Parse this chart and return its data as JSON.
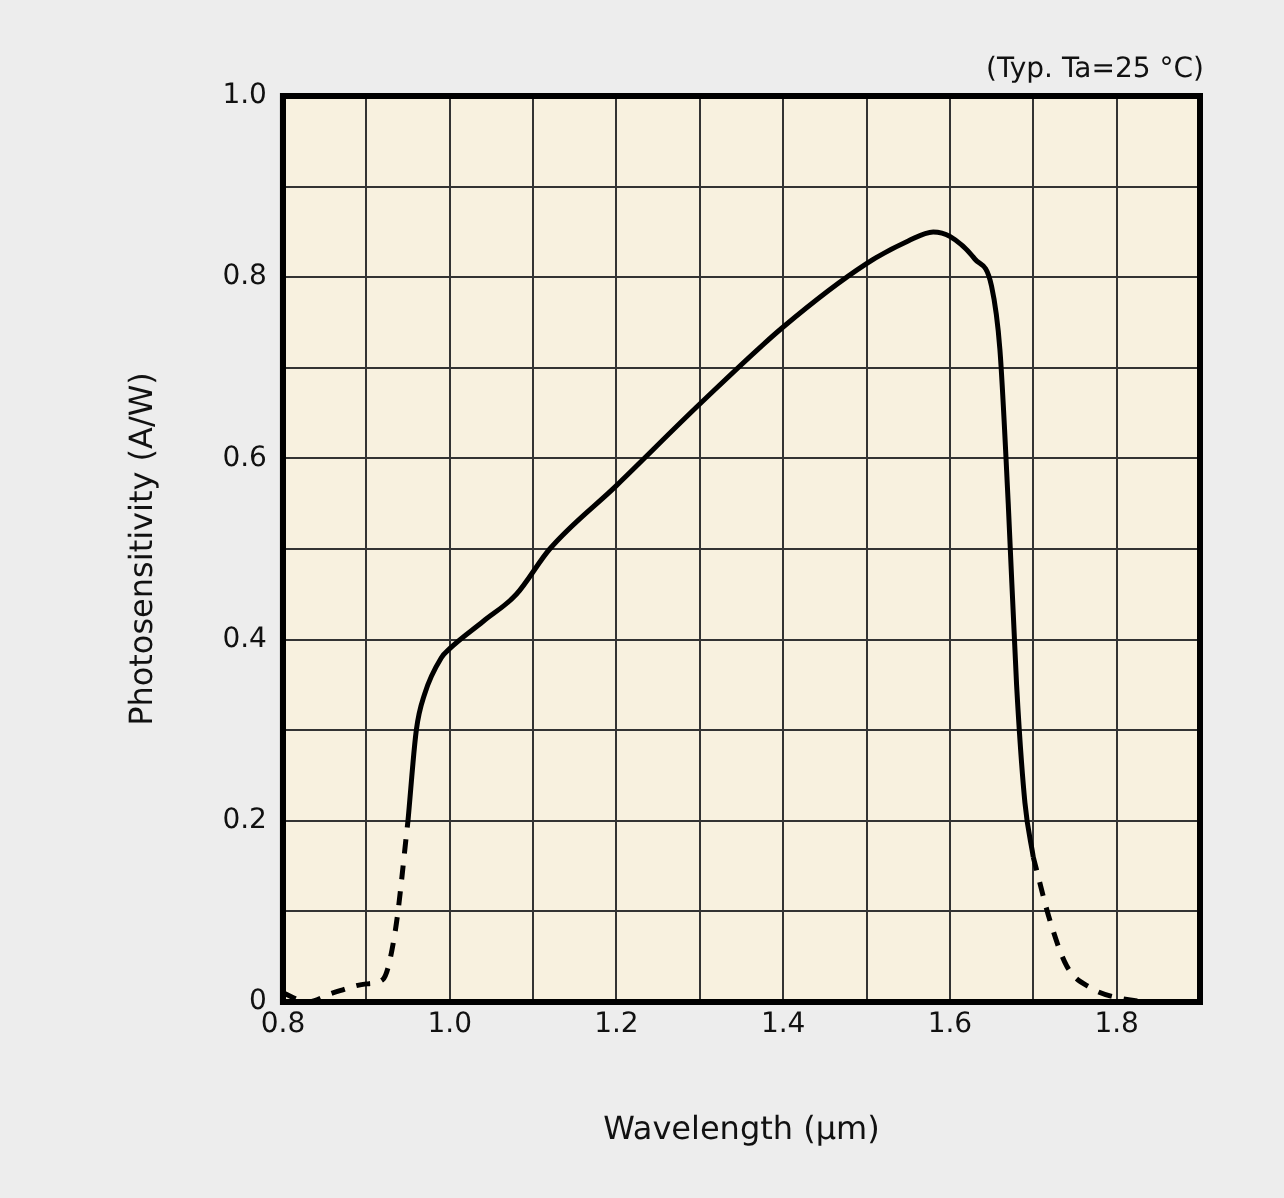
{
  "chart_data": {
    "type": "line",
    "xlabel": "Wavelength (µm)",
    "ylabel": "Photosensitivity (A/W)",
    "annotations": [
      "(Typ. Ta=25 °C)"
    ],
    "xlim": [
      0.8,
      1.9
    ],
    "xticks": [
      0.8,
      {
        "value": 0.9,
        "label": null
      },
      {
        "value": 1,
        "label": "1.0"
      },
      {
        "value": 1.1,
        "label": null
      },
      1.2,
      {
        "value": 1.3,
        "label": null
      },
      1.4,
      {
        "value": 1.5,
        "label": null
      },
      1.6,
      {
        "value": 1.7,
        "label": null
      },
      1.8,
      {
        "value": 1.9,
        "label": null
      }
    ],
    "ylim": [
      0,
      1.0
    ],
    "yticks": [
      0,
      {
        "value": 0.1,
        "label": null
      },
      0.2,
      {
        "value": 0.3,
        "label": null
      },
      0.4,
      {
        "value": 0.5,
        "label": null
      },
      0.6,
      {
        "value": 0.7,
        "label": null
      },
      0.8,
      {
        "value": 0.9,
        "label": null
      },
      {
        "value": 1,
        "label": "1.0"
      }
    ],
    "grid": true,
    "legend": false,
    "marker": "none",
    "series": [
      {
        "color": "#000000",
        "line_style": "dashed",
        "x": [
          0.8,
          0.83,
          0.86,
          0.9,
          0.92,
          0.935,
          0.95
        ],
        "values": [
          0.01,
          0,
          0.01,
          0.02,
          0.025,
          0.08,
          0.2
        ]
      },
      {
        "color": "#000000",
        "line_style": "solid",
        "x": [
          0.95,
          0.96,
          0.97,
          0.99,
          1.0,
          1.04,
          1.08,
          1.12,
          1.2,
          1.3,
          1.4,
          1.5,
          1.55,
          1.58,
          1.6,
          1.63,
          1.65,
          1.66,
          1.67,
          1.68,
          1.69,
          1.7
        ],
        "values": [
          0.2,
          0.3,
          0.34,
          0.38,
          0.39,
          0.42,
          0.45,
          0.5,
          0.57,
          0.66,
          0.745,
          0.815,
          0.84,
          0.85,
          0.845,
          0.82,
          0.79,
          0.72,
          0.55,
          0.35,
          0.22,
          0.16
        ]
      },
      {
        "color": "#000000",
        "line_style": "dashed",
        "x": [
          1.7,
          1.72,
          1.74,
          1.77,
          1.8,
          1.85,
          1.9
        ],
        "values": [
          0.16,
          0.09,
          0.04,
          0.015,
          0.005,
          0,
          0
        ]
      }
    ]
  }
}
